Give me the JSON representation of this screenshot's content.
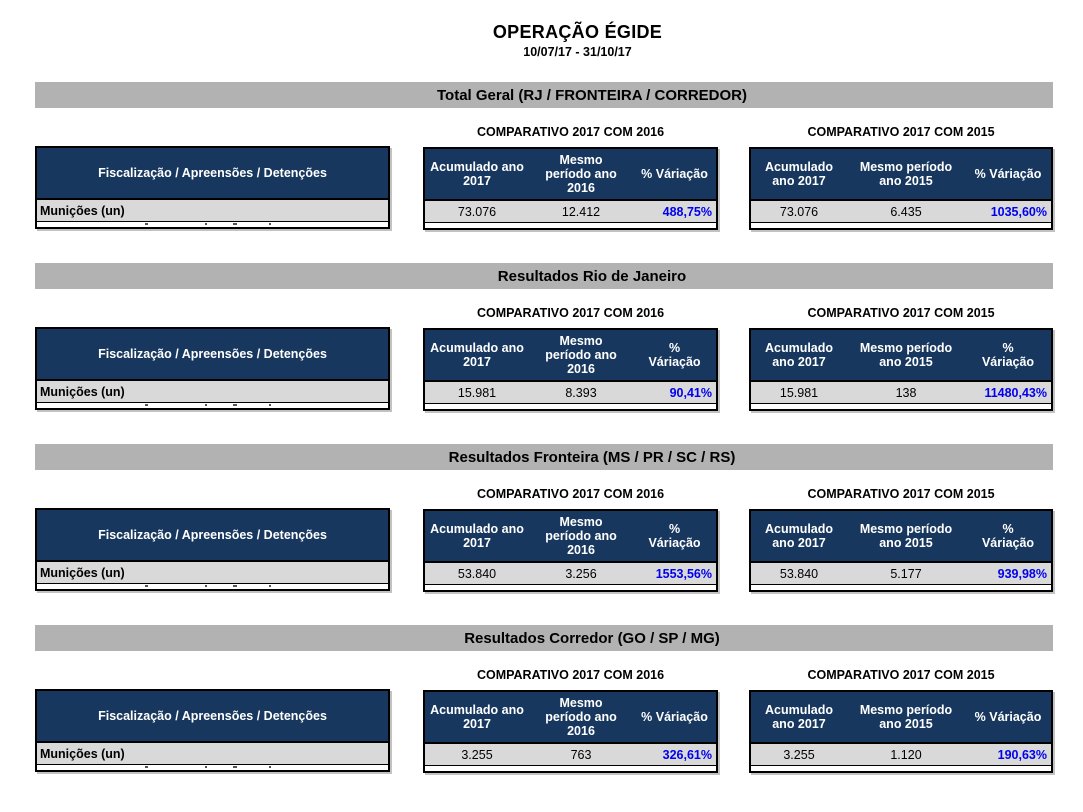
{
  "title": "OPERAÇÃO ÉGIDE",
  "date_range": "10/07/17 - 31/10/17",
  "left_table": {
    "header": "Fiscalização / Apreensões / Detenções",
    "row_label": "Munições (un)"
  },
  "colors": {
    "header_navy": "#17375e",
    "section_bar_gray": "#b2b2b2",
    "row_gray": "#d9d9d9",
    "percent_blue": "#0000ee"
  },
  "sections": [
    {
      "name": "Total Geral (RJ / FRONTEIRA / CORREDOR)",
      "comp2016": {
        "title": "COMPARATIVO 2017 COM 2016",
        "col1": "Acumulado ano\n2017",
        "col2": "Mesmo\nperíodo ano\n2016",
        "col3": "% Váriação",
        "v1": "73.076",
        "v2": "12.412",
        "v3": "488,75%"
      },
      "comp2015": {
        "title": "COMPARATIVO 2017 COM 2015",
        "col1": "Acumulado\nano 2017",
        "col2": "Mesmo período\nano 2015",
        "col3": "% Váriação",
        "v1": "73.076",
        "v2": "6.435",
        "v3": "1035,60%"
      }
    },
    {
      "name": "Resultados Rio de Janeiro",
      "comp2016": {
        "title": "COMPARATIVO 2017 COM 2016",
        "col1": "Acumulado ano\n2017",
        "col2": "Mesmo\nperíodo ano\n2016",
        "col3": "%\nVáriação",
        "v1": "15.981",
        "v2": "8.393",
        "v3": "90,41%"
      },
      "comp2015": {
        "title": "COMPARATIVO 2017 COM 2015",
        "col1": "Acumulado\nano 2017",
        "col2": "Mesmo período\nano 2015",
        "col3": "%\nVáriação",
        "v1": "15.981",
        "v2": "138",
        "v3": "11480,43%"
      }
    },
    {
      "name": "Resultados Fronteira (MS / PR / SC / RS)",
      "comp2016": {
        "title": "COMPARATIVO 2017 COM 2016",
        "col1": "Acumulado ano\n2017",
        "col2": "Mesmo\nperíodo ano\n2016",
        "col3": "%\nVáriação",
        "v1": "53.840",
        "v2": "3.256",
        "v3": "1553,56%"
      },
      "comp2015": {
        "title": "COMPARATIVO 2017 COM 2015",
        "col1": "Acumulado\nano 2017",
        "col2": "Mesmo período\nano 2015",
        "col3": "%\nVáriação",
        "v1": "53.840",
        "v2": "5.177",
        "v3": "939,98%"
      }
    },
    {
      "name": "Resultados Corredor (GO / SP / MG)",
      "comp2016": {
        "title": "COMPARATIVO 2017 COM 2016",
        "col1": "Acumulado ano\n2017",
        "col2": "Mesmo\nperíodo ano\n2016",
        "col3": "% Váriação",
        "v1": "3.255",
        "v2": "763",
        "v3": "326,61%"
      },
      "comp2015": {
        "title": "COMPARATIVO 2017 COM 2015",
        "col1": "Acumulado\nano 2017",
        "col2": "Mesmo período\nano 2015",
        "col3": "% Váriação",
        "v1": "3.255",
        "v2": "1.120",
        "v3": "190,63%"
      }
    }
  ]
}
